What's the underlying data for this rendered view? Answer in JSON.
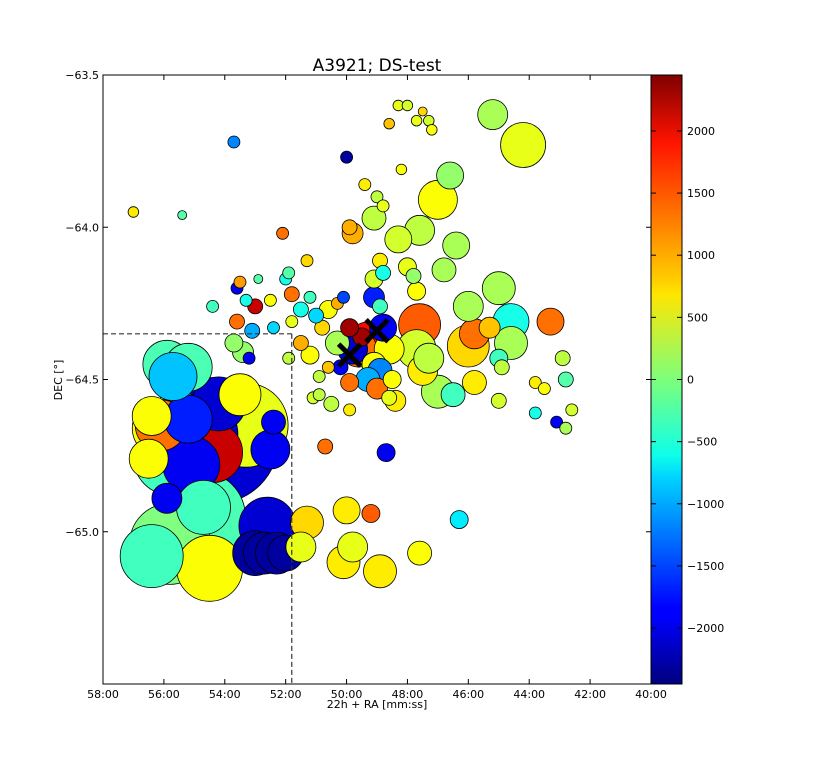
{
  "chart_data": {
    "type": "scatter",
    "title": "A3921; DS-test",
    "xlabel": "22h + RA [mm:ss]",
    "ylabel": "DEC [°]",
    "xlim": [
      58,
      40
    ],
    "ylim": [
      -65.5,
      -63.5
    ],
    "x_ticks": [
      "58:00",
      "56:00",
      "54:00",
      "52:00",
      "50:00",
      "48:00",
      "46:00",
      "44:00",
      "42:00",
      "40:00"
    ],
    "x_tick_values": [
      58,
      56,
      54,
      52,
      50,
      48,
      46,
      44,
      42,
      40
    ],
    "y_ticks": [
      "−63.5",
      "−64.0",
      "−64.5",
      "−65.0"
    ],
    "y_tick_values": [
      -63.5,
      -64.0,
      -64.5,
      -65.0
    ],
    "colorbar": {
      "min": -2450,
      "max": 2450,
      "ticks": [
        "2000",
        "1500",
        "1000",
        "500",
        "0",
        "−500",
        "−1000",
        "−1500",
        "−2000"
      ],
      "tick_values": [
        2000,
        1500,
        1000,
        500,
        0,
        -500,
        -1000,
        -1500,
        -2000
      ],
      "colormap": "jet"
    },
    "guide_lines": {
      "ra": 51.8,
      "dec": -64.35,
      "style": "dashed"
    },
    "markers": [
      {
        "ra": 49.9,
        "dec": -64.42
      },
      {
        "ra": 49.0,
        "dec": -64.34
      }
    ],
    "points": [
      {
        "ra": 54.3,
        "dec": -64.7,
        "ds": -2050,
        "s": 4.2
      },
      {
        "ra": 53.3,
        "dec": -64.65,
        "ds": 500,
        "s": 2.8
      },
      {
        "ra": 54.8,
        "dec": -64.95,
        "ds": -250,
        "s": 3.0
      },
      {
        "ra": 55.9,
        "dec": -64.45,
        "ds": -250,
        "s": 1.6
      },
      {
        "ra": 55.2,
        "dec": -64.46,
        "ds": -250,
        "s": 1.6
      },
      {
        "ra": 54.8,
        "dec": -64.68,
        "ds": -2050,
        "s": 2.5
      },
      {
        "ra": 55.5,
        "dec": -64.65,
        "ds": 0,
        "s": 2.2
      },
      {
        "ra": 56.1,
        "dec": -64.66,
        "ds": 600,
        "s": 1.9
      },
      {
        "ra": 55.2,
        "dec": -64.63,
        "ds": -1700,
        "s": 1.6
      },
      {
        "ra": 54.2,
        "dec": -64.58,
        "ds": -2050,
        "s": 1.8
      },
      {
        "ra": 54.4,
        "dec": -64.74,
        "ds": 2100,
        "s": 2.0
      },
      {
        "ra": 55.7,
        "dec": -64.49,
        "ds": -900,
        "s": 1.6
      },
      {
        "ra": 55.8,
        "dec": -64.76,
        "ds": -300,
        "s": 2.4
      },
      {
        "ra": 56.1,
        "dec": -64.65,
        "ds": 1300,
        "s": 1.7
      },
      {
        "ra": 56.4,
        "dec": -64.62,
        "ds": 600,
        "s": 1.3
      },
      {
        "ra": 55.1,
        "dec": -64.78,
        "ds": -1900,
        "s": 1.9
      },
      {
        "ra": 56.5,
        "dec": -64.76,
        "ds": 600,
        "s": 1.3
      },
      {
        "ra": 53.5,
        "dec": -64.55,
        "ds": 600,
        "s": 1.4
      },
      {
        "ra": 52.5,
        "dec": -64.73,
        "ds": -1900,
        "s": 1.3
      },
      {
        "ra": 52.4,
        "dec": -64.64,
        "ds": -1900,
        "s": 0.8
      },
      {
        "ra": 55.9,
        "dec": -64.89,
        "ds": -1900,
        "s": 1.0
      },
      {
        "ra": 55.8,
        "dec": -65.04,
        "ds": 0,
        "s": 2.7
      },
      {
        "ra": 56.4,
        "dec": -65.08,
        "ds": -300,
        "s": 2.1
      },
      {
        "ra": 54.5,
        "dec": -65.12,
        "ds": 600,
        "s": 2.2
      },
      {
        "ra": 54.7,
        "dec": -64.92,
        "ds": -300,
        "s": 1.8
      },
      {
        "ra": 52.6,
        "dec": -64.98,
        "ds": -2050,
        "s": 1.9
      },
      {
        "ra": 53.0,
        "dec": -65.07,
        "ds": -2300,
        "s": 1.5
      },
      {
        "ra": 52.7,
        "dec": -65.07,
        "ds": -2300,
        "s": 1.4
      },
      {
        "ra": 52.3,
        "dec": -65.07,
        "ds": -2300,
        "s": 1.4
      },
      {
        "ra": 52.0,
        "dec": -65.07,
        "ds": -2300,
        "s": 1.2
      },
      {
        "ra": 51.5,
        "dec": -65.05,
        "ds": 500,
        "s": 1.0
      },
      {
        "ra": 51.3,
        "dec": -64.97,
        "ds": 800,
        "s": 1.1
      },
      {
        "ra": 50.0,
        "dec": -64.93,
        "ds": 700,
        "s": 0.9
      },
      {
        "ra": 49.8,
        "dec": -65.05,
        "ds": 500,
        "s": 1.0
      },
      {
        "ra": 50.1,
        "dec": -65.1,
        "ds": 700,
        "s": 1.1
      },
      {
        "ra": 49.2,
        "dec": -64.94,
        "ds": 1400,
        "s": 0.6
      },
      {
        "ra": 48.9,
        "dec": -65.13,
        "ds": 700,
        "s": 1.1
      },
      {
        "ra": 47.6,
        "dec": -65.07,
        "ds": 600,
        "s": 0.8
      },
      {
        "ra": 46.3,
        "dec": -64.96,
        "ds": -700,
        "s": 0.6
      },
      {
        "ra": 50.7,
        "dec": -64.72,
        "ds": 1300,
        "s": 0.5
      },
      {
        "ra": 48.7,
        "dec": -64.74,
        "ds": -1900,
        "s": 0.6
      },
      {
        "ra": 49.8,
        "dec": -64.4,
        "ds": -2050,
        "s": 1.0
      },
      {
        "ra": 49.6,
        "dec": -64.4,
        "ds": 1300,
        "s": 1.2
      },
      {
        "ra": 49.3,
        "dec": -64.38,
        "ds": 1800,
        "s": 1.4
      },
      {
        "ra": 48.8,
        "dec": -64.33,
        "ds": -1900,
        "s": 0.9
      },
      {
        "ra": 48.6,
        "dec": -64.4,
        "ds": 600,
        "s": 1.0
      },
      {
        "ra": 49.1,
        "dec": -64.45,
        "ds": 600,
        "s": 0.8
      },
      {
        "ra": 48.9,
        "dec": -64.47,
        "ds": -1200,
        "s": 0.8
      },
      {
        "ra": 49.5,
        "dec": -64.36,
        "ds": 2300,
        "s": 0.6
      },
      {
        "ra": 49.9,
        "dec": -64.33,
        "ds": 2300,
        "s": 0.6
      },
      {
        "ra": 50.3,
        "dec": -64.38,
        "ds": 200,
        "s": 0.8
      },
      {
        "ra": 50.2,
        "dec": -64.46,
        "ds": -1900,
        "s": 0.5
      },
      {
        "ra": 49.9,
        "dec": -64.51,
        "ds": 1300,
        "s": 0.6
      },
      {
        "ra": 49.3,
        "dec": -64.5,
        "ds": -1000,
        "s": 0.8
      },
      {
        "ra": 49.0,
        "dec": -64.53,
        "ds": 1300,
        "s": 0.7
      },
      {
        "ra": 48.5,
        "dec": -64.5,
        "ds": 600,
        "s": 0.6
      },
      {
        "ra": 47.6,
        "dec": -64.32,
        "ds": 1400,
        "s": 1.4
      },
      {
        "ra": 47.7,
        "dec": -64.4,
        "ds": 400,
        "s": 1.3
      },
      {
        "ra": 47.5,
        "dec": -64.47,
        "ds": 700,
        "s": 1.0
      },
      {
        "ra": 47.3,
        "dec": -64.43,
        "ds": 300,
        "s": 1.0
      },
      {
        "ra": 47.0,
        "dec": -64.54,
        "ds": 200,
        "s": 1.1
      },
      {
        "ra": 46.5,
        "dec": -64.55,
        "ds": -300,
        "s": 0.8
      },
      {
        "ra": 45.8,
        "dec": -64.51,
        "ds": 700,
        "s": 0.8
      },
      {
        "ra": 45.0,
        "dec": -64.57,
        "ds": 400,
        "s": 0.5
      },
      {
        "ra": 46.0,
        "dec": -64.39,
        "ds": 800,
        "s": 1.4
      },
      {
        "ra": 45.8,
        "dec": -64.35,
        "ds": 1300,
        "s": 1.0
      },
      {
        "ra": 45.3,
        "dec": -64.33,
        "ds": 900,
        "s": 0.7
      },
      {
        "ra": 45.0,
        "dec": -64.43,
        "ds": -300,
        "s": 0.6
      },
      {
        "ra": 44.9,
        "dec": -64.46,
        "ds": 300,
        "s": 0.5
      },
      {
        "ra": 44.6,
        "dec": -64.31,
        "ds": -500,
        "s": 1.2
      },
      {
        "ra": 44.6,
        "dec": -64.38,
        "ds": 200,
        "s": 1.1
      },
      {
        "ra": 45.0,
        "dec": -64.2,
        "ds": 200,
        "s": 1.1
      },
      {
        "ra": 46.0,
        "dec": -64.26,
        "ds": 200,
        "s": 1.0
      },
      {
        "ra": 43.3,
        "dec": -64.31,
        "ds": 1300,
        "s": 0.9
      },
      {
        "ra": 42.9,
        "dec": -64.43,
        "ds": 300,
        "s": 0.5
      },
      {
        "ra": 42.8,
        "dec": -64.5,
        "ds": -200,
        "s": 0.5
      },
      {
        "ra": 43.8,
        "dec": -64.51,
        "ds": 700,
        "s": 0.4
      },
      {
        "ra": 43.5,
        "dec": -64.53,
        "ds": 600,
        "s": 0.4
      },
      {
        "ra": 43.8,
        "dec": -64.61,
        "ds": -500,
        "s": 0.4
      },
      {
        "ra": 43.1,
        "dec": -64.64,
        "ds": -1900,
        "s": 0.4
      },
      {
        "ra": 42.8,
        "dec": -64.66,
        "ds": 200,
        "s": 0.4
      },
      {
        "ra": 42.6,
        "dec": -64.6,
        "ds": 400,
        "s": 0.4
      },
      {
        "ra": 48.4,
        "dec": -64.57,
        "ds": 700,
        "s": 0.7
      },
      {
        "ra": 48.6,
        "dec": -64.56,
        "ds": 500,
        "s": 0.5
      },
      {
        "ra": 49.9,
        "dec": -64.6,
        "ds": 700,
        "s": 0.4
      },
      {
        "ra": 50.5,
        "dec": -64.58,
        "ds": 300,
        "s": 0.5
      },
      {
        "ra": 51.1,
        "dec": -64.56,
        "ds": 400,
        "s": 0.4
      },
      {
        "ra": 50.9,
        "dec": -64.49,
        "ds": 300,
        "s": 0.4
      },
      {
        "ra": 50.6,
        "dec": -64.46,
        "ds": 900,
        "s": 0.4
      },
      {
        "ra": 51.2,
        "dec": -64.42,
        "ds": 600,
        "s": 0.6
      },
      {
        "ra": 51.5,
        "dec": -64.38,
        "ds": 1000,
        "s": 0.5
      },
      {
        "ra": 50.8,
        "dec": -64.33,
        "ds": 800,
        "s": 0.5
      },
      {
        "ra": 51.0,
        "dec": -64.29,
        "ds": -800,
        "s": 0.5
      },
      {
        "ra": 50.6,
        "dec": -64.27,
        "ds": 600,
        "s": 0.6
      },
      {
        "ra": 50.3,
        "dec": -64.25,
        "ds": 1000,
        "s": 0.4
      },
      {
        "ra": 50.1,
        "dec": -64.23,
        "ds": -1500,
        "s": 0.4
      },
      {
        "ra": 51.8,
        "dec": -64.31,
        "ds": 500,
        "s": 0.4
      },
      {
        "ra": 51.5,
        "dec": -64.27,
        "ds": -500,
        "s": 0.5
      },
      {
        "ra": 51.2,
        "dec": -64.23,
        "ds": -300,
        "s": 0.4
      },
      {
        "ra": 51.8,
        "dec": -64.22,
        "ds": 1300,
        "s": 0.5
      },
      {
        "ra": 52.5,
        "dec": -64.24,
        "ds": 600,
        "s": 0.4
      },
      {
        "ra": 52.0,
        "dec": -64.17,
        "ds": -500,
        "s": 0.4
      },
      {
        "ra": 51.9,
        "dec": -64.15,
        "ds": -200,
        "s": 0.4
      },
      {
        "ra": 51.3,
        "dec": -64.11,
        "ds": 800,
        "s": 0.4
      },
      {
        "ra": 52.1,
        "dec": -64.02,
        "ds": 1300,
        "s": 0.4
      },
      {
        "ra": 53.0,
        "dec": -64.26,
        "ds": 2100,
        "s": 0.5
      },
      {
        "ra": 52.4,
        "dec": -64.33,
        "ds": -800,
        "s": 0.4
      },
      {
        "ra": 53.1,
        "dec": -64.34,
        "ds": -1000,
        "s": 0.5
      },
      {
        "ra": 53.6,
        "dec": -64.31,
        "ds": 1300,
        "s": 0.5
      },
      {
        "ra": 53.7,
        "dec": -64.38,
        "ds": 100,
        "s": 0.6
      },
      {
        "ra": 53.4,
        "dec": -64.41,
        "ds": 100,
        "s": 0.7
      },
      {
        "ra": 53.2,
        "dec": -64.43,
        "ds": -1900,
        "s": 0.4
      },
      {
        "ra": 53.6,
        "dec": -64.2,
        "ds": -1900,
        "s": 0.4
      },
      {
        "ra": 53.3,
        "dec": -64.24,
        "ds": -500,
        "s": 0.4
      },
      {
        "ra": 54.4,
        "dec": -64.26,
        "ds": -300,
        "s": 0.4
      },
      {
        "ra": 53.5,
        "dec": -64.18,
        "ds": 1100,
        "s": 0.4
      },
      {
        "ra": 52.9,
        "dec": -64.17,
        "ds": -200,
        "s": 0.3
      },
      {
        "ra": 51.9,
        "dec": -64.43,
        "ds": 300,
        "s": 0.4
      },
      {
        "ra": 50.9,
        "dec": -64.55,
        "ds": 300,
        "s": 0.4
      },
      {
        "ra": 53.7,
        "dec": -63.72,
        "ds": -1200,
        "s": 0.4
      },
      {
        "ra": 57.0,
        "dec": -63.95,
        "ds": 700,
        "s": 0.35
      },
      {
        "ra": 55.4,
        "dec": -63.96,
        "ds": -200,
        "s": 0.3
      },
      {
        "ra": 50.0,
        "dec": -63.77,
        "ds": -2300,
        "s": 0.4
      },
      {
        "ra": 49.9,
        "dec": -64.0,
        "ds": 1000,
        "s": 0.5
      },
      {
        "ra": 49.8,
        "dec": -64.02,
        "ds": 1000,
        "s": 0.7
      },
      {
        "ra": 49.4,
        "dec": -63.86,
        "ds": 700,
        "s": 0.4
      },
      {
        "ra": 49.0,
        "dec": -63.9,
        "ds": 300,
        "s": 0.4
      },
      {
        "ra": 49.1,
        "dec": -63.97,
        "ds": 300,
        "s": 0.8
      },
      {
        "ra": 48.8,
        "dec": -63.93,
        "ds": 500,
        "s": 0.4
      },
      {
        "ra": 48.6,
        "dec": -63.66,
        "ds": 900,
        "s": 0.35
      },
      {
        "ra": 48.2,
        "dec": -63.81,
        "ds": 600,
        "s": 0.35
      },
      {
        "ra": 48.3,
        "dec": -63.6,
        "ds": 500,
        "s": 0.35
      },
      {
        "ra": 48.0,
        "dec": -63.6,
        "ds": 400,
        "s": 0.35
      },
      {
        "ra": 47.5,
        "dec": -63.62,
        "ds": 800,
        "s": 0.3
      },
      {
        "ra": 47.7,
        "dec": -63.65,
        "ds": 500,
        "s": 0.35
      },
      {
        "ra": 47.3,
        "dec": -63.65,
        "ds": 400,
        "s": 0.35
      },
      {
        "ra": 47.2,
        "dec": -63.68,
        "ds": 600,
        "s": 0.35
      },
      {
        "ra": 46.6,
        "dec": -63.83,
        "ds": 100,
        "s": 0.9
      },
      {
        "ra": 45.2,
        "dec": -63.63,
        "ds": 200,
        "s": 1.0
      },
      {
        "ra": 44.2,
        "dec": -63.73,
        "ds": 500,
        "s": 1.5
      },
      {
        "ra": 47.0,
        "dec": -63.91,
        "ds": 600,
        "s": 1.3
      },
      {
        "ra": 47.6,
        "dec": -64.01,
        "ds": 300,
        "s": 1.0
      },
      {
        "ra": 48.3,
        "dec": -64.04,
        "ds": 400,
        "s": 0.9
      },
      {
        "ra": 48.9,
        "dec": -64.11,
        "ds": 700,
        "s": 0.5
      },
      {
        "ra": 48.8,
        "dec": -64.15,
        "ds": -500,
        "s": 0.5
      },
      {
        "ra": 49.1,
        "dec": -64.17,
        "ds": 400,
        "s": 0.6
      },
      {
        "ra": 48.0,
        "dec": -64.13,
        "ds": 500,
        "s": 0.6
      },
      {
        "ra": 47.8,
        "dec": -64.16,
        "ds": 100,
        "s": 0.5
      },
      {
        "ra": 47.7,
        "dec": -64.21,
        "ds": 600,
        "s": 0.6
      },
      {
        "ra": 46.8,
        "dec": -64.14,
        "ds": 200,
        "s": 0.8
      },
      {
        "ra": 46.4,
        "dec": -64.06,
        "ds": 200,
        "s": 0.9
      },
      {
        "ra": 49.1,
        "dec": -64.23,
        "ds": -1700,
        "s": 0.7
      },
      {
        "ra": 48.9,
        "dec": -64.26,
        "ds": -300,
        "s": 0.5
      }
    ]
  }
}
